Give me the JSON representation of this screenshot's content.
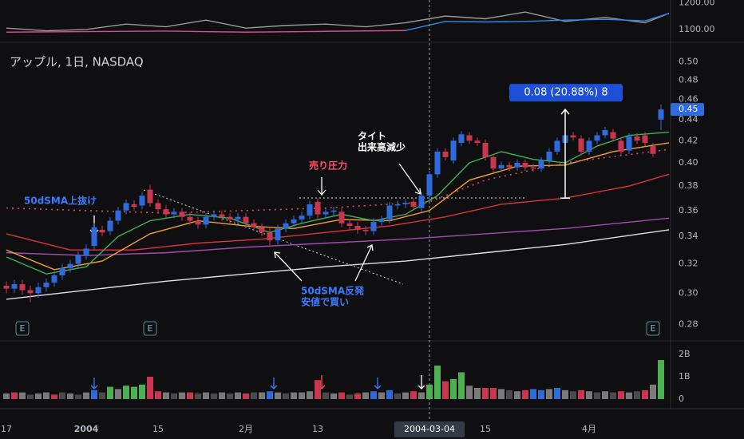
{
  "chart_data": {
    "type": "candlestick",
    "title": "アップル, 1日, NASDAQ",
    "categories": [
      "17",
      null,
      null,
      null,
      null,
      null,
      null,
      null,
      null,
      null,
      "2004",
      null,
      null,
      null,
      null,
      null,
      null,
      null,
      null,
      "15",
      null,
      null,
      null,
      null,
      null,
      null,
      null,
      null,
      null,
      null,
      "2月",
      null,
      null,
      null,
      null,
      null,
      null,
      null,
      null,
      "13",
      null,
      null,
      null,
      null,
      null,
      null,
      null,
      null,
      null,
      null,
      null,
      null,
      null,
      "2004-03-04",
      null,
      null,
      null,
      null,
      null,
      null,
      "15",
      null,
      null,
      null,
      null,
      null,
      null,
      null,
      null,
      null,
      null,
      null,
      null,
      "4月",
      null,
      null,
      null,
      null,
      null,
      null,
      null,
      null,
      null
    ],
    "open": [
      0.305,
      0.303,
      0.306,
      0.302,
      0.3,
      0.304,
      0.307,
      0.312,
      0.317,
      0.32,
      0.326,
      0.333,
      0.345,
      0.344,
      0.352,
      0.36,
      0.365,
      0.364,
      0.377,
      0.366,
      0.361,
      0.357,
      0.359,
      0.355,
      0.352,
      0.349,
      0.355,
      0.357,
      0.355,
      0.353,
      0.355,
      0.35,
      0.347,
      0.343,
      0.337,
      0.346,
      0.35,
      0.353,
      0.356,
      0.367,
      0.357,
      0.359,
      0.359,
      0.35,
      0.348,
      0.345,
      0.344,
      0.351,
      0.353,
      0.364,
      0.365,
      0.367,
      0.362,
      0.372,
      0.39,
      0.41,
      0.402,
      0.418,
      0.425,
      0.42,
      0.418,
      0.405,
      0.395,
      0.398,
      0.396,
      0.4,
      0.396,
      0.395,
      0.402,
      0.41,
      0.418,
      0.425,
      0.422,
      0.41,
      0.42,
      0.425,
      0.428,
      0.42,
      0.411,
      0.424,
      0.425,
      0.415,
      0.44
    ],
    "high": [
      0.308,
      0.309,
      0.309,
      0.305,
      0.307,
      0.31,
      0.315,
      0.32,
      0.323,
      0.329,
      0.334,
      0.35,
      0.348,
      0.355,
      0.363,
      0.369,
      0.368,
      0.375,
      0.381,
      0.369,
      0.364,
      0.362,
      0.362,
      0.358,
      0.355,
      0.358,
      0.36,
      0.36,
      0.358,
      0.358,
      0.358,
      0.353,
      0.35,
      0.346,
      0.349,
      0.353,
      0.356,
      0.359,
      0.368,
      0.37,
      0.362,
      0.363,
      0.362,
      0.353,
      0.351,
      0.348,
      0.354,
      0.356,
      0.367,
      0.368,
      0.369,
      0.37,
      0.375,
      0.393,
      0.413,
      0.413,
      0.423,
      0.429,
      0.428,
      0.423,
      0.421,
      0.408,
      0.401,
      0.401,
      0.403,
      0.403,
      0.399,
      0.405,
      0.413,
      0.423,
      0.428,
      0.428,
      0.425,
      0.423,
      0.428,
      0.433,
      0.431,
      0.423,
      0.427,
      0.427,
      0.428,
      0.418,
      0.455
    ],
    "low": [
      0.3,
      0.3,
      0.299,
      0.294,
      0.297,
      0.301,
      0.304,
      0.309,
      0.314,
      0.317,
      0.323,
      0.33,
      0.34,
      0.341,
      0.349,
      0.357,
      0.36,
      0.361,
      0.363,
      0.358,
      0.354,
      0.354,
      0.352,
      0.349,
      0.346,
      0.346,
      0.352,
      0.352,
      0.35,
      0.35,
      0.347,
      0.344,
      0.34,
      0.333,
      0.334,
      0.343,
      0.347,
      0.35,
      0.353,
      0.354,
      0.354,
      0.356,
      0.347,
      0.345,
      0.342,
      0.341,
      0.341,
      0.348,
      0.35,
      0.361,
      0.362,
      0.36,
      0.359,
      0.369,
      0.387,
      0.402,
      0.399,
      0.415,
      0.417,
      0.415,
      0.402,
      0.392,
      0.392,
      0.393,
      0.393,
      0.393,
      0.392,
      0.392,
      0.399,
      0.407,
      0.415,
      0.42,
      0.407,
      0.407,
      0.417,
      0.422,
      0.419,
      0.407,
      0.408,
      0.417,
      0.415,
      0.405,
      0.43
    ],
    "close": [
      0.303,
      0.306,
      0.302,
      0.3,
      0.304,
      0.307,
      0.312,
      0.317,
      0.32,
      0.326,
      0.331,
      0.347,
      0.343,
      0.352,
      0.36,
      0.366,
      0.363,
      0.372,
      0.366,
      0.361,
      0.357,
      0.359,
      0.355,
      0.352,
      0.349,
      0.355,
      0.357,
      0.355,
      0.353,
      0.355,
      0.35,
      0.347,
      0.343,
      0.337,
      0.346,
      0.35,
      0.353,
      0.356,
      0.365,
      0.357,
      0.359,
      0.36,
      0.35,
      0.348,
      0.345,
      0.344,
      0.351,
      0.353,
      0.364,
      0.365,
      0.366,
      0.363,
      0.372,
      0.39,
      0.41,
      0.405,
      0.42,
      0.426,
      0.42,
      0.418,
      0.405,
      0.395,
      0.398,
      0.396,
      0.4,
      0.396,
      0.395,
      0.402,
      0.41,
      0.42,
      0.425,
      0.423,
      0.41,
      0.42,
      0.425,
      0.43,
      0.422,
      0.41,
      0.424,
      0.42,
      0.418,
      0.408,
      0.45
    ],
    "colors": {
      "up": "#2f6bdc",
      "down": "#c8374e"
    },
    "log_scale": true,
    "ylim": [
      0.271,
      0.52
    ],
    "yticks": [
      0.28,
      {
        "value": 0.3,
        "label": "0.30"
      },
      0.32,
      0.34,
      0.36,
      0.38,
      {
        "value": 0.4,
        "label": "0.40"
      },
      0.42,
      0.44,
      0.46,
      0.48,
      {
        "value": 0.5,
        "label": "0.50"
      }
    ],
    "last_price": 0.45,
    "crosshair": 53,
    "overlays": [
      {
        "color": "#e0e0e0",
        "x": [
          0,
          10,
          20,
          30,
          40,
          50,
          60,
          70,
          83
        ],
        "values": [
          0.296,
          0.302,
          0.308,
          0.313,
          0.318,
          0.322,
          0.328,
          0.334,
          0.345
        ]
      },
      {
        "color": "#a24bb0",
        "x": [
          0,
          10,
          20,
          30,
          40,
          50,
          60,
          70,
          83
        ],
        "values": [
          0.328,
          0.326,
          0.328,
          0.332,
          0.335,
          0.338,
          0.342,
          0.346,
          0.354
        ]
      },
      {
        "color": "#d8343f",
        "x": [
          0,
          8,
          16,
          24,
          32,
          40,
          48,
          55,
          62,
          70,
          78,
          83
        ],
        "values": [
          0.342,
          0.33,
          0.33,
          0.335,
          0.338,
          0.343,
          0.348,
          0.355,
          0.365,
          0.37,
          0.38,
          0.39
        ]
      },
      {
        "color": "#f0a030",
        "x": [
          0,
          6,
          12,
          18,
          24,
          30,
          36,
          42,
          48,
          53,
          58,
          64,
          70,
          76,
          83
        ],
        "values": [
          0.33,
          0.316,
          0.322,
          0.342,
          0.352,
          0.348,
          0.346,
          0.353,
          0.352,
          0.36,
          0.385,
          0.397,
          0.398,
          0.41,
          0.418
        ]
      },
      {
        "color": "#3fae5a",
        "x": [
          0,
          5,
          10,
          14,
          18,
          23,
          28,
          33,
          37,
          42,
          46,
          50,
          54,
          58,
          62,
          66,
          70,
          74,
          78,
          83
        ],
        "values": [
          0.325,
          0.313,
          0.318,
          0.34,
          0.352,
          0.357,
          0.354,
          0.343,
          0.35,
          0.357,
          0.352,
          0.357,
          0.372,
          0.4,
          0.41,
          0.403,
          0.4,
          0.415,
          0.425,
          0.428
        ]
      },
      {
        "color": "#e0455a",
        "dashed": true,
        "x": [
          0,
          20,
          40,
          53,
          60,
          70,
          83
        ],
        "values": [
          0.362,
          0.358,
          0.362,
          0.367,
          0.385,
          0.4,
          0.412
        ]
      }
    ],
    "earnings": {
      "label": "E",
      "bars": [
        2,
        18,
        81
      ]
    },
    "measure": {
      "label": "0.08 (20.88%) 8",
      "bar": 70,
      "from": 0.37,
      "to": 0.45
    },
    "annotations": {
      "breakout": "50dSMA上抜け",
      "pressure": "売り圧力",
      "tight": "タイト",
      "volume_down": "出来高減少",
      "rebound": "50dSMA反発",
      "buy_low": "安値で買い"
    },
    "volume": {
      "values": [
        0.25,
        0.3,
        0.3,
        0.2,
        0.25,
        0.3,
        0.2,
        0.3,
        0.25,
        0.2,
        0.3,
        0.4,
        0.3,
        0.55,
        0.45,
        0.6,
        0.55,
        0.65,
        1.0,
        0.35,
        0.3,
        0.25,
        0.3,
        0.3,
        0.25,
        0.3,
        0.25,
        0.3,
        0.25,
        0.3,
        0.25,
        0.3,
        0.3,
        0.35,
        0.3,
        0.25,
        0.3,
        0.3,
        0.35,
        0.85,
        0.3,
        0.25,
        0.3,
        0.2,
        0.25,
        0.3,
        0.35,
        0.3,
        0.4,
        0.25,
        0.3,
        0.35,
        0.3,
        0.65,
        1.5,
        0.8,
        0.9,
        1.2,
        0.6,
        0.5,
        0.5,
        0.5,
        0.45,
        0.4,
        0.35,
        0.4,
        0.45,
        0.4,
        0.45,
        0.5,
        0.4,
        0.35,
        0.4,
        0.35,
        0.3,
        0.35,
        0.3,
        0.35,
        0.3,
        0.35,
        0.4,
        0.65,
        1.75
      ],
      "colors": [
        "#7a7a7a",
        "#c8374e",
        "#7a7a7a",
        "#4a4a4a",
        "#7a7a7a",
        "#7a7a7a",
        "#c8374e",
        "#4a4a4a",
        "#7a7a7a",
        "#4a4a4a",
        "#7a7a7a",
        "#2e6bd6",
        "#4a4a4a",
        "#4caf50",
        "#7a7a7a",
        "#4caf50",
        "#4caf50",
        "#4caf50",
        "#c8374e",
        "#c8374e",
        "#7a7a7a",
        "#4a4a4a",
        "#7a7a7a",
        "#c8374e",
        "#4a4a4a",
        "#7a7a7a",
        "#4a4a4a",
        "#7a7a7a",
        "#4a4a4a",
        "#7a7a7a",
        "#c8374e",
        "#4a4a4a",
        "#7a7a7a",
        "#2e6bd6",
        "#7a7a7a",
        "#4a4a4a",
        "#7a7a7a",
        "#7a7a7a",
        "#7a7a7a",
        "#c8374e",
        "#4a4a4a",
        "#7a7a7a",
        "#c8374e",
        "#4a4a4a",
        "#c8374e",
        "#7a7a7a",
        "#2e6bd6",
        "#7a7a7a",
        "#2e6bd6",
        "#4a4a4a",
        "#7a7a7a",
        "#c8374e",
        "#7a7a7a",
        "#4caf50",
        "#4caf50",
        "#c8374e",
        "#4caf50",
        "#4caf50",
        "#7a7a7a",
        "#7a7a7a",
        "#c8374e",
        "#c8374e",
        "#7a7a7a",
        "#4a4a4a",
        "#7a7a7a",
        "#c8374e",
        "#2e6bd6",
        "#2e6bd6",
        "#7a7a7a",
        "#2e6bd6",
        "#7a7a7a",
        "#4a4a4a",
        "#c8374e",
        "#7a7a7a",
        "#4a4a4a",
        "#7a7a7a",
        "#4a4a4a",
        "#c8374e",
        "#7a7a7a",
        "#4a4a4a",
        "#c8374e",
        "#7a7a7a",
        "#4caf50"
      ],
      "ylim": [
        0,
        2.5
      ],
      "yticks": [
        0,
        {
          "value": 1,
          "label": "1B"
        },
        {
          "value": 2,
          "label": "2B"
        }
      ]
    },
    "indicator": {
      "ylim": [
        1055,
        1210
      ],
      "yticks": [
        {
          "value": 1100,
          "label": "1100.00"
        },
        {
          "value": 1200,
          "label": "1200.00"
        }
      ],
      "series": [
        {
          "color": "#9a9a9a",
          "x": [
            0,
            5,
            10,
            15,
            20,
            25,
            30,
            35,
            40,
            45,
            50,
            55,
            60,
            65,
            70,
            75,
            80,
            83
          ],
          "values": [
            1105,
            1095,
            1100,
            1120,
            1110,
            1135,
            1105,
            1115,
            1120,
            1110,
            1125,
            1150,
            1140,
            1165,
            1130,
            1145,
            1125,
            1160
          ]
        },
        {
          "color": "#e0488a",
          "x": [
            0,
            10,
            20,
            30,
            40,
            50
          ],
          "values": [
            1090,
            1092,
            1094,
            1090,
            1093,
            1096
          ]
        },
        {
          "color": "#2f8ae8",
          "x": [
            50,
            55,
            60,
            65,
            70,
            75,
            80,
            83
          ],
          "values": [
            1096,
            1130,
            1128,
            1130,
            1135,
            1138,
            1132,
            1160
          ]
        }
      ]
    }
  }
}
